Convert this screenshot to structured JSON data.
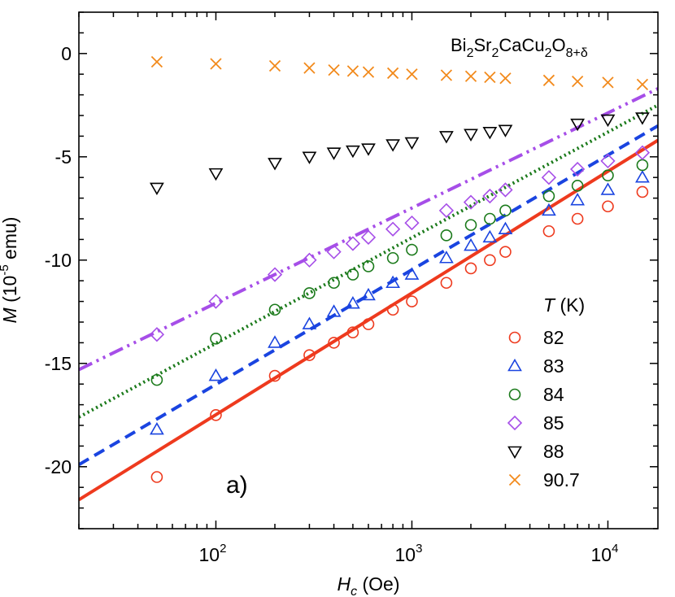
{
  "chart_data": {
    "type": "scatter",
    "panel_label": "a)",
    "annotation": {
      "base": "Bi",
      "parts": [
        {
          "t": "Bi",
          "s": "n"
        },
        {
          "t": "2",
          "s": "sub"
        },
        {
          "t": "Sr",
          "s": "n"
        },
        {
          "t": "2",
          "s": "sub"
        },
        {
          "t": "CaCu",
          "s": "n"
        },
        {
          "t": "2",
          "s": "sub"
        },
        {
          "t": "O",
          "s": "n"
        },
        {
          "t": "8+δ",
          "s": "sub"
        }
      ]
    },
    "xlabel": {
      "var": "H",
      "sub": "c",
      "unit": " (Oe)"
    },
    "ylabel": {
      "var": "M",
      "pre": " (10",
      "exp": "-5",
      "unit": " emu)"
    },
    "xscale": "log",
    "xlim": [
      20,
      18000
    ],
    "ylim": [
      -23,
      2
    ],
    "xticks": [
      {
        "value": 100,
        "base": "10",
        "exp": "2"
      },
      {
        "value": 1000,
        "base": "10",
        "exp": "3"
      },
      {
        "value": 10000,
        "base": "10",
        "exp": "4"
      }
    ],
    "yticks": [
      0,
      -5,
      -10,
      -15,
      -20
    ],
    "legend": {
      "title_var": "T",
      "title_unit": " (K)",
      "position": "lower-right"
    },
    "series": [
      {
        "name": "82",
        "marker": "circle",
        "color": "#ee3a1e",
        "x": [
          50,
          100,
          200,
          300,
          400,
          500,
          600,
          800,
          1000,
          1500,
          2000,
          2500,
          3000,
          5000,
          7000,
          10000,
          15000
        ],
        "y": [
          -20.5,
          -17.5,
          -15.6,
          -14.6,
          -14.0,
          -13.5,
          -13.1,
          -12.4,
          -12.0,
          -11.1,
          -10.4,
          -10.0,
          -9.6,
          -8.6,
          -8.0,
          -7.4,
          -6.7
        ],
        "fit": {
          "style": "solid",
          "x": [
            20,
            18000
          ],
          "y": [
            -21.6,
            -4.2
          ]
        }
      },
      {
        "name": "83",
        "marker": "triangle-up",
        "color": "#1a44e0",
        "x": [
          50,
          100,
          200,
          300,
          400,
          500,
          600,
          800,
          1000,
          1500,
          2000,
          2500,
          3000,
          5000,
          7000,
          10000,
          15000
        ],
        "y": [
          -18.2,
          -15.6,
          -14.0,
          -13.1,
          -12.5,
          -12.1,
          -11.7,
          -11.1,
          -10.7,
          -9.9,
          -9.3,
          -8.9,
          -8.5,
          -7.6,
          -7.1,
          -6.6,
          -6.0
        ],
        "fit": {
          "style": "dashed",
          "x": [
            20,
            18000
          ],
          "y": [
            -19.9,
            -3.5
          ]
        }
      },
      {
        "name": "84",
        "marker": "circle",
        "color": "#1b7a1b",
        "x": [
          50,
          100,
          200,
          300,
          400,
          500,
          600,
          800,
          1000,
          1500,
          2000,
          2500,
          3000,
          5000,
          7000,
          10000,
          15000
        ],
        "y": [
          -15.8,
          -13.8,
          -12.4,
          -11.6,
          -11.1,
          -10.7,
          -10.3,
          -9.9,
          -9.5,
          -8.8,
          -8.3,
          -8.0,
          -7.6,
          -6.9,
          -6.4,
          -5.9,
          -5.4
        ],
        "fit": {
          "style": "dotted",
          "x": [
            20,
            18000
          ],
          "y": [
            -17.6,
            -2.5
          ]
        }
      },
      {
        "name": "85",
        "marker": "diamond",
        "color": "#a64ee8",
        "x": [
          50,
          100,
          200,
          300,
          400,
          500,
          600,
          800,
          1000,
          1500,
          2000,
          2500,
          3000,
          5000,
          7000,
          10000,
          15000
        ],
        "y": [
          -13.6,
          -12.0,
          -10.7,
          -10.0,
          -9.6,
          -9.2,
          -8.9,
          -8.5,
          -8.2,
          -7.6,
          -7.2,
          -6.9,
          -6.6,
          -6.0,
          -5.6,
          -5.2,
          -4.8
        ],
        "fit": {
          "style": "dash-dot-dot",
          "x": [
            20,
            18000
          ],
          "y": [
            -15.3,
            -1.7
          ]
        }
      },
      {
        "name": "88",
        "marker": "triangle-down",
        "color": "#000000",
        "x": [
          50,
          100,
          200,
          300,
          400,
          500,
          600,
          800,
          1000,
          1500,
          2000,
          2500,
          3000,
          7000,
          10000,
          15000
        ],
        "y": [
          -6.5,
          -5.8,
          -5.3,
          -5.0,
          -4.8,
          -4.7,
          -4.6,
          -4.4,
          -4.3,
          -4.0,
          -3.9,
          -3.8,
          -3.7,
          -3.4,
          -3.2,
          -3.1
        ],
        "fit": null
      },
      {
        "name": "90.7",
        "marker": "x",
        "color": "#f28a1c",
        "x": [
          50,
          100,
          200,
          300,
          400,
          500,
          600,
          800,
          1000,
          1500,
          2000,
          2500,
          3000,
          5000,
          7000,
          10000,
          15000
        ],
        "y": [
          -0.4,
          -0.5,
          -0.6,
          -0.7,
          -0.8,
          -0.85,
          -0.9,
          -0.95,
          -1.0,
          -1.05,
          -1.1,
          -1.15,
          -1.2,
          -1.3,
          -1.35,
          -1.4,
          -1.5
        ],
        "fit": null
      }
    ]
  }
}
